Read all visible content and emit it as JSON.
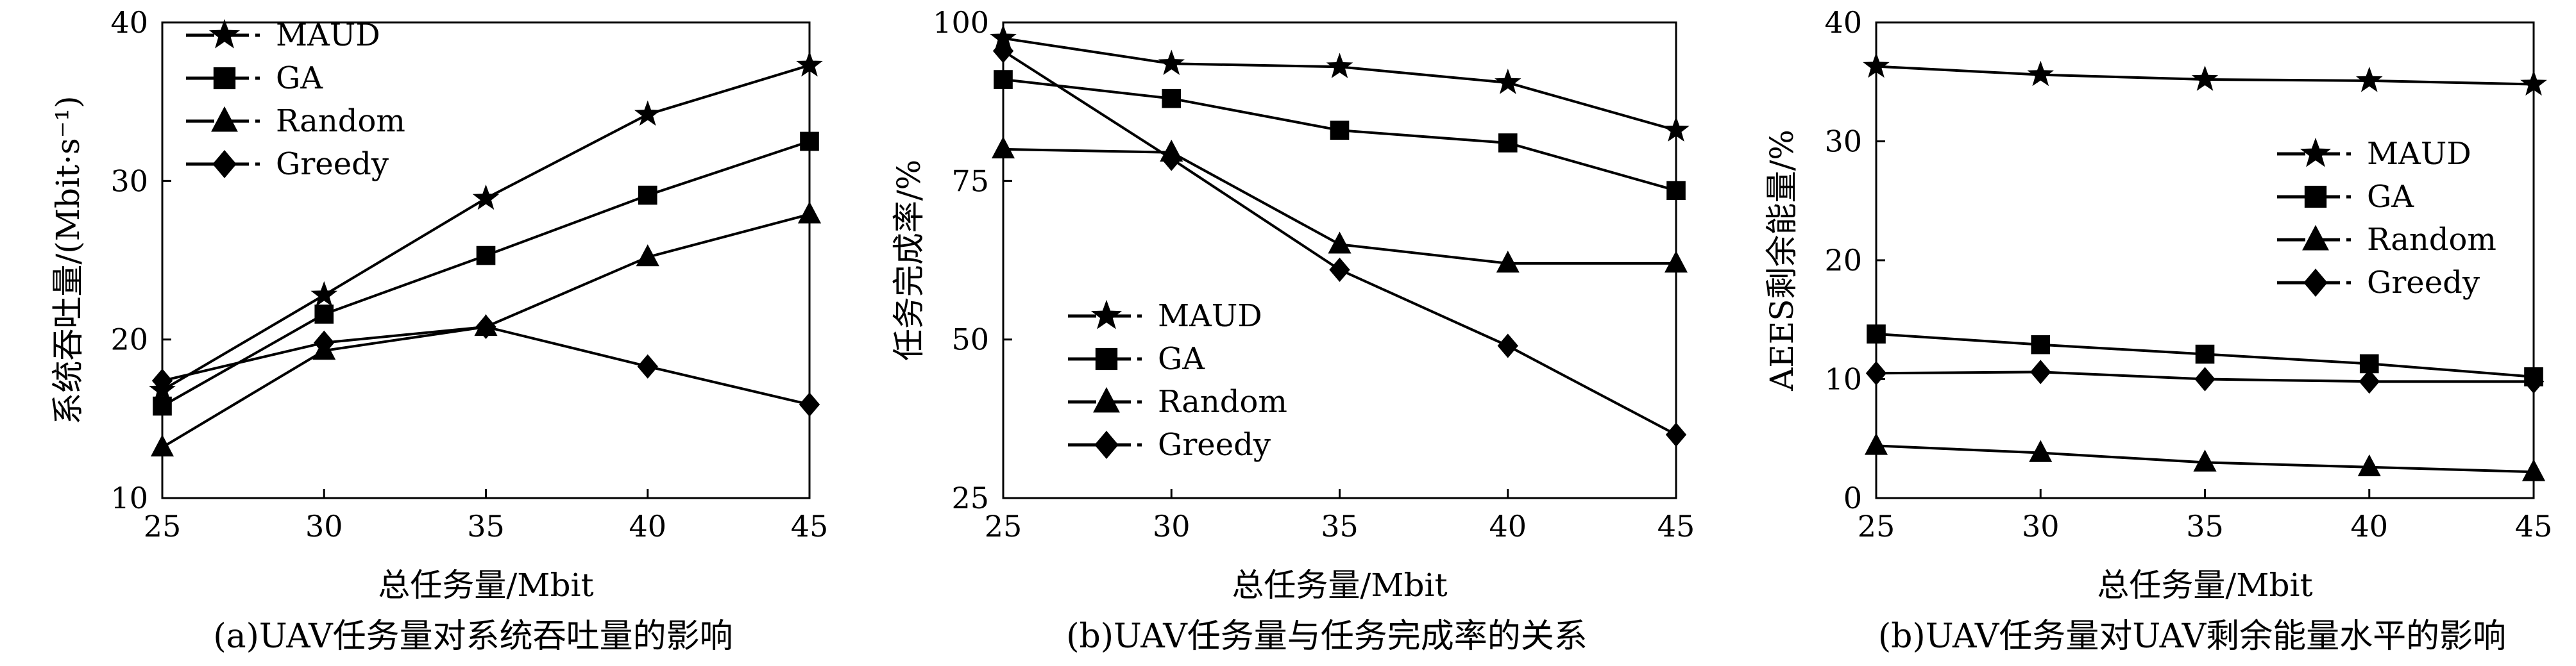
{
  "chart_data": [
    {
      "type": "line",
      "caption": "(a)UAV任务量对系统吞吐量的影响",
      "xlabel": "总任务量/Mbit",
      "ylabel": "系统吞吐量/(Mbit·s⁻¹)",
      "x": [
        25,
        30,
        35,
        40,
        45
      ],
      "xlim": [
        25,
        45
      ],
      "ylim": [
        10,
        40
      ],
      "xticks": [
        25,
        30,
        35,
        40,
        45
      ],
      "yticks": [
        10,
        20,
        30,
        40
      ],
      "grid": false,
      "legend_position": "top-left",
      "series": [
        {
          "name": "MAUD",
          "marker": "star",
          "values": [
            16.8,
            22.8,
            28.9,
            34.2,
            37.3
          ]
        },
        {
          "name": "GA",
          "marker": "square",
          "values": [
            15.8,
            21.6,
            25.3,
            29.1,
            32.5
          ]
        },
        {
          "name": "Random",
          "marker": "triangle",
          "values": [
            13.2,
            19.3,
            20.8,
            25.2,
            27.9
          ]
        },
        {
          "name": "Greedy",
          "marker": "diamond",
          "values": [
            17.4,
            19.8,
            20.8,
            18.3,
            15.9
          ]
        }
      ]
    },
    {
      "type": "line",
      "caption": "(b)UAV任务量与任务完成率的关系",
      "xlabel": "总任务量/Mbit",
      "ylabel": "任务完成率/%",
      "x": [
        25,
        30,
        35,
        40,
        45
      ],
      "xlim": [
        25,
        45
      ],
      "ylim": [
        25,
        100
      ],
      "xticks": [
        25,
        30,
        35,
        40,
        45
      ],
      "yticks": [
        25,
        50,
        75,
        100
      ],
      "grid": false,
      "legend_position": "bottom-left",
      "series": [
        {
          "name": "MAUD",
          "marker": "star",
          "values": [
            97.5,
            93.5,
            93.0,
            90.5,
            83.0
          ]
        },
        {
          "name": "GA",
          "marker": "square",
          "values": [
            91.0,
            88.0,
            83.0,
            81.0,
            73.5
          ]
        },
        {
          "name": "Random",
          "marker": "triangle",
          "values": [
            80.0,
            79.5,
            65.0,
            62.0,
            62.0
          ]
        },
        {
          "name": "Greedy",
          "marker": "diamond",
          "values": [
            95.5,
            78.5,
            61.0,
            49.0,
            35.0
          ]
        }
      ]
    },
    {
      "type": "line",
      "caption": "(b)UAV任务量对UAV剩余能量水平的影响",
      "xlabel": "总任务量/Mbit",
      "ylabel": "AEES剩余能量/%",
      "x": [
        25,
        30,
        35,
        40,
        45
      ],
      "xlim": [
        25,
        45
      ],
      "ylim": [
        0,
        40
      ],
      "xticks": [
        25,
        30,
        35,
        40,
        45
      ],
      "yticks": [
        0,
        10,
        20,
        30,
        40
      ],
      "grid": false,
      "legend_position": "center-right",
      "series": [
        {
          "name": "MAUD",
          "marker": "star",
          "values": [
            36.3,
            35.6,
            35.2,
            35.1,
            34.8
          ]
        },
        {
          "name": "GA",
          "marker": "square",
          "values": [
            13.8,
            12.9,
            12.1,
            11.3,
            10.2
          ]
        },
        {
          "name": "Random",
          "marker": "triangle",
          "values": [
            4.4,
            3.8,
            3.0,
            2.6,
            2.2
          ]
        },
        {
          "name": "Greedy",
          "marker": "diamond",
          "values": [
            10.5,
            10.6,
            10.0,
            9.8,
            9.8
          ]
        }
      ]
    }
  ]
}
